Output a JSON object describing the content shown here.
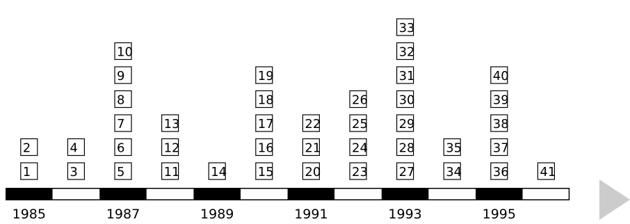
{
  "chart_data": {
    "type": "timeline-stacked-boxes",
    "title": "",
    "xlabel": "",
    "ylabel": "",
    "start_year": 1985,
    "end_year": 1996,
    "bar_colors": {
      "dark": "#000000",
      "light": "#ffffff",
      "arrow": "#cccccc"
    },
    "year_labels": [
      "1985",
      "1987",
      "1989",
      "1991",
      "1993",
      "1995"
    ],
    "columns": [
      {
        "year": 1985,
        "items": [
          "1",
          "2"
        ]
      },
      {
        "year": 1986,
        "items": [
          "3",
          "4"
        ]
      },
      {
        "year": 1987,
        "items": [
          "5",
          "6",
          "7",
          "8",
          "9",
          "10"
        ]
      },
      {
        "year": 1988,
        "items": [
          "11",
          "12",
          "13"
        ]
      },
      {
        "year": 1989,
        "items": [
          "14"
        ]
      },
      {
        "year": 1990,
        "items": [
          "15",
          "16",
          "17",
          "18",
          "19"
        ]
      },
      {
        "year": 1991,
        "items": [
          "20",
          "21",
          "22"
        ]
      },
      {
        "year": 1992,
        "items": [
          "23",
          "24",
          "25",
          "26"
        ]
      },
      {
        "year": 1993,
        "items": [
          "27",
          "28",
          "29",
          "30",
          "31",
          "32",
          "33"
        ]
      },
      {
        "year": 1994,
        "items": [
          "34",
          "35"
        ]
      },
      {
        "year": 1995,
        "items": [
          "36",
          "37",
          "38",
          "39",
          "40"
        ]
      },
      {
        "year": 1996,
        "items": [
          "41"
        ]
      }
    ]
  }
}
